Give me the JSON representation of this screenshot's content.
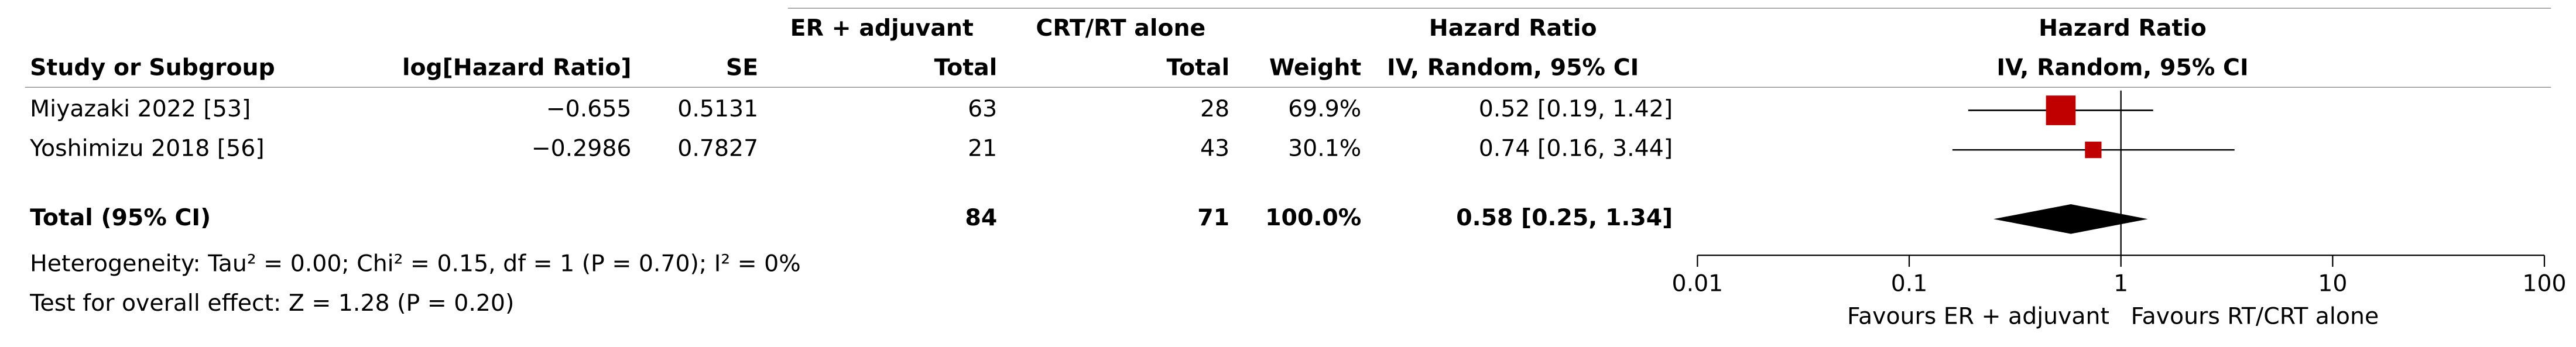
{
  "chart_data": {
    "type": "forest",
    "columns": {
      "study": "Study or Subgroup",
      "log_hr": "log[Hazard Ratio]",
      "se": "SE",
      "group1": "ER + adjuvant",
      "group2": "CRT/RT alone",
      "total1": "Total",
      "total2": "Total",
      "weight": "Weight",
      "hr_title": "Hazard Ratio",
      "hr_method": "IV, Random, 95% CI",
      "plot_title": "Hazard Ratio",
      "plot_method": "IV, Random, 95% CI"
    },
    "categories": [
      "Miyazaki 2022 [53]",
      "Yoshimizu 2018 [56]"
    ],
    "log_hr": [
      "−0.655",
      "−0.2986"
    ],
    "se": [
      0.5131,
      0.7827
    ],
    "total1": [
      63,
      21
    ],
    "total2": [
      28,
      43
    ],
    "weight": [
      69.9,
      30.1
    ],
    "weight_labels": [
      "69.9%",
      "30.1%"
    ],
    "hr": [
      0.52,
      0.74
    ],
    "ci_low": [
      0.19,
      0.16
    ],
    "ci_high": [
      1.42,
      3.44
    ],
    "hr_labels": [
      "0.52 [0.19, 1.42]",
      "0.74 [0.16, 3.44]"
    ],
    "total": {
      "label": "Total (95% CI)",
      "total1": 84,
      "total2": 71,
      "weight_label": "100.0%",
      "hr": 0.58,
      "ci_low": 0.25,
      "ci_high": 1.34,
      "hr_label": "0.58 [0.25, 1.34]"
    },
    "heterogeneity": "Heterogeneity: Tau² = 0.00; Chi² = 0.15, df = 1 (P = 0.70); I² = 0%",
    "overall_effect": "Test for overall effect: Z = 1.28 (P = 0.20)",
    "xscale": "log",
    "xlim": [
      0.01,
      100
    ],
    "xticks": [
      0.01,
      0.1,
      1,
      10,
      100
    ],
    "xlabel_left": "Favours ER + adjuvant",
    "xlabel_right": "Favours RT/CRT alone",
    "square_color": "#c00000",
    "diamond_color": "#000000"
  }
}
